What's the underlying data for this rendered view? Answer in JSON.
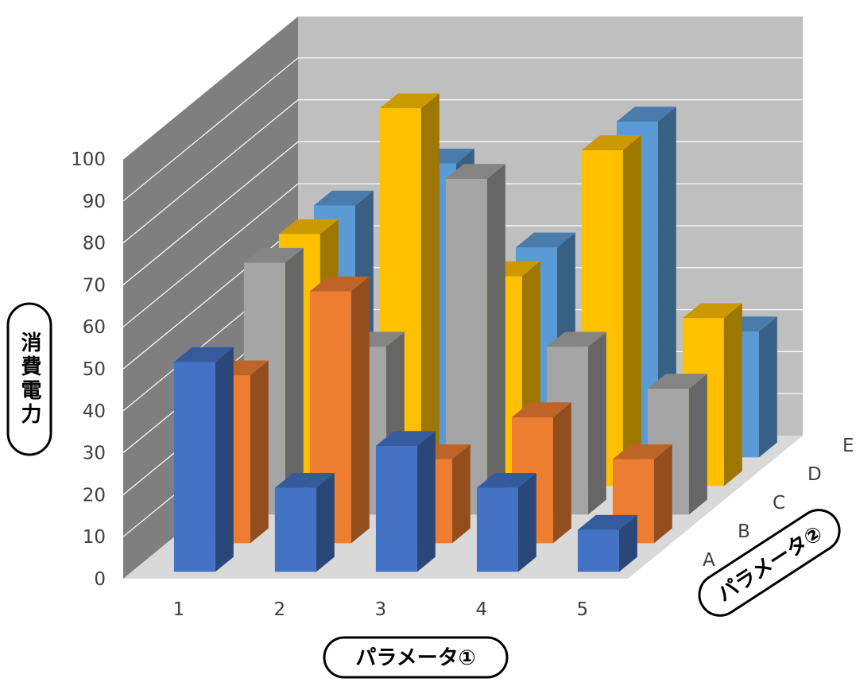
{
  "chart_data": {
    "type": "bar",
    "subtype": "3d-column",
    "title": "",
    "xlabel": "パラメータ①",
    "ylabel": "消費電力",
    "zlabel": "パラメータ②",
    "categories": [
      "1",
      "2",
      "3",
      "4",
      "5"
    ],
    "y_ticks": [
      "0",
      "10",
      "20",
      "30",
      "40",
      "50",
      "60",
      "70",
      "80",
      "90",
      "100"
    ],
    "ylim": [
      0,
      100
    ],
    "grid": true,
    "series": [
      {
        "name": "A",
        "color": "#4472C4",
        "values": [
          50,
          20,
          30,
          20,
          10
        ]
      },
      {
        "name": "B",
        "color": "#ED7D31",
        "values": [
          40,
          60,
          20,
          30,
          20
        ]
      },
      {
        "name": "C",
        "color": "#A5A5A5",
        "values": [
          60,
          40,
          80,
          40,
          30
        ]
      },
      {
        "name": "D",
        "color": "#FFC000",
        "values": [
          60,
          90,
          50,
          80,
          40
        ]
      },
      {
        "name": "E",
        "color": "#5B9BD5",
        "values": [
          60,
          70,
          50,
          80,
          30
        ]
      }
    ]
  }
}
